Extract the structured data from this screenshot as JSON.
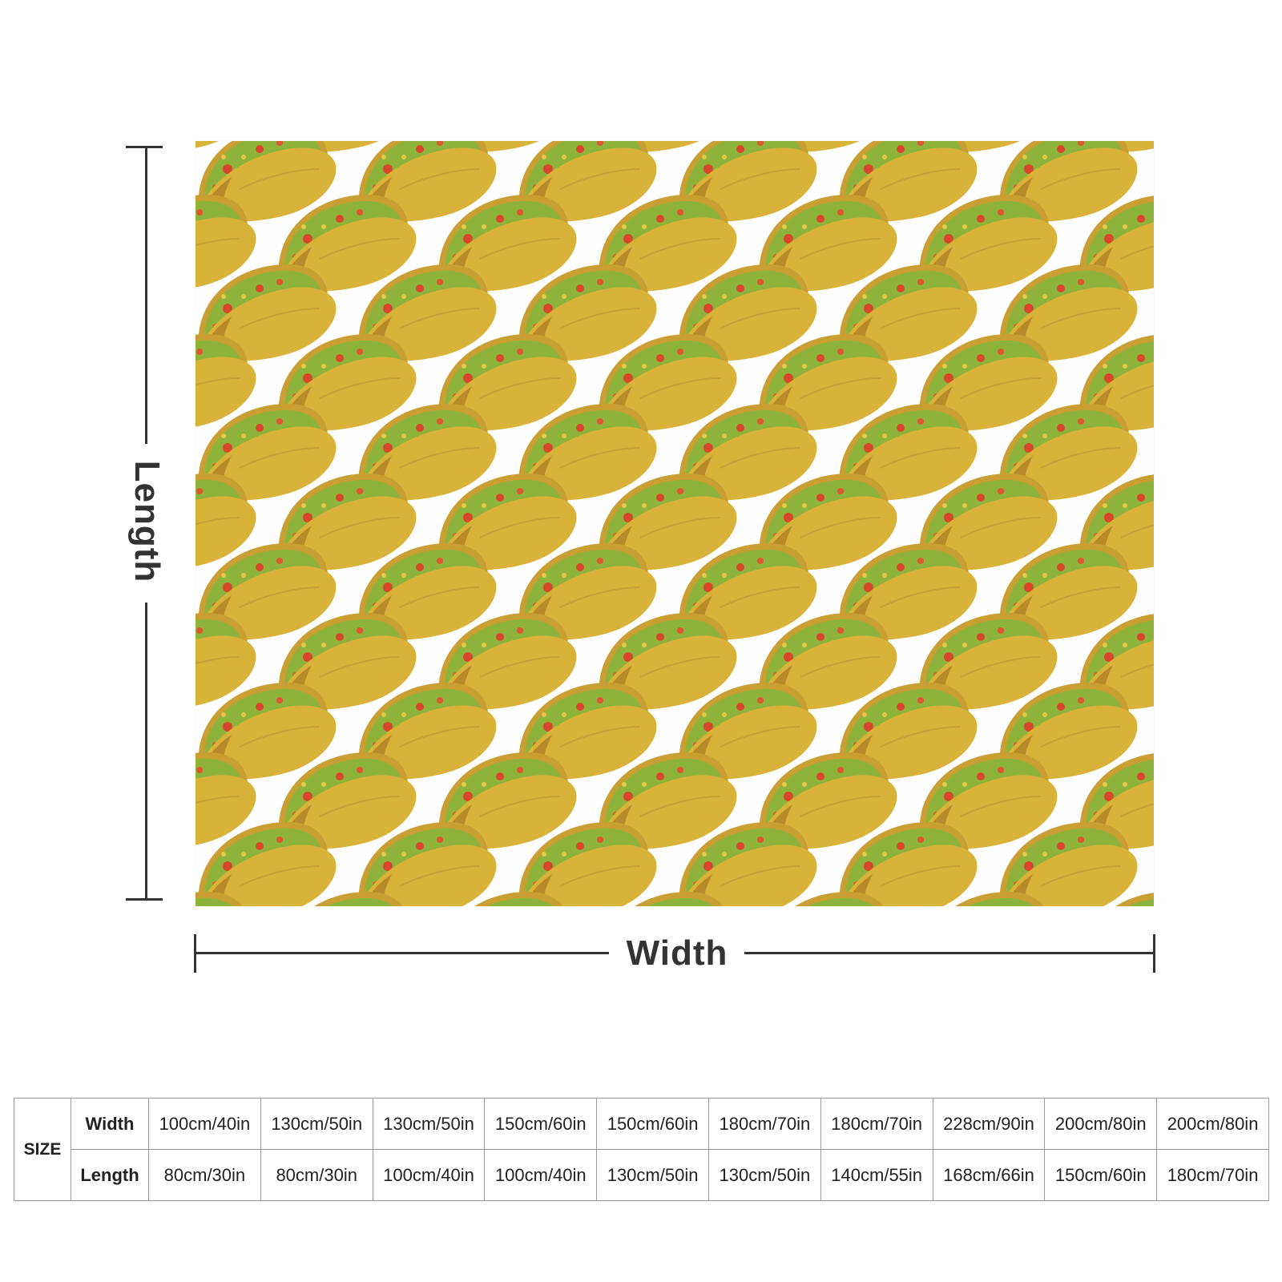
{
  "pattern": {
    "motif_icon": "taco-icon",
    "background_color": "#fefefe",
    "shell_color": "#d9b23a",
    "shell_shade_color": "#b98a2a",
    "filling_color": "#8db33a",
    "tomato_color": "#d9472b"
  },
  "dimensions": {
    "length_label": "Length",
    "width_label": "Width"
  },
  "size_table": {
    "size_label": "SIZE",
    "width_label": "Width",
    "length_label": "Length",
    "widths": [
      "100cm/40in",
      "130cm/50in",
      "130cm/50in",
      "150cm/60in",
      "150cm/60in",
      "180cm/70in",
      "180cm/70in",
      "228cm/90in",
      "200cm/80in",
      "200cm/80in"
    ],
    "lengths": [
      "80cm/30in",
      "80cm/30in",
      "100cm/40in",
      "100cm/40in",
      "130cm/50in",
      "130cm/50in",
      "140cm/55in",
      "168cm/66in",
      "150cm/60in",
      "180cm/70in"
    ]
  }
}
